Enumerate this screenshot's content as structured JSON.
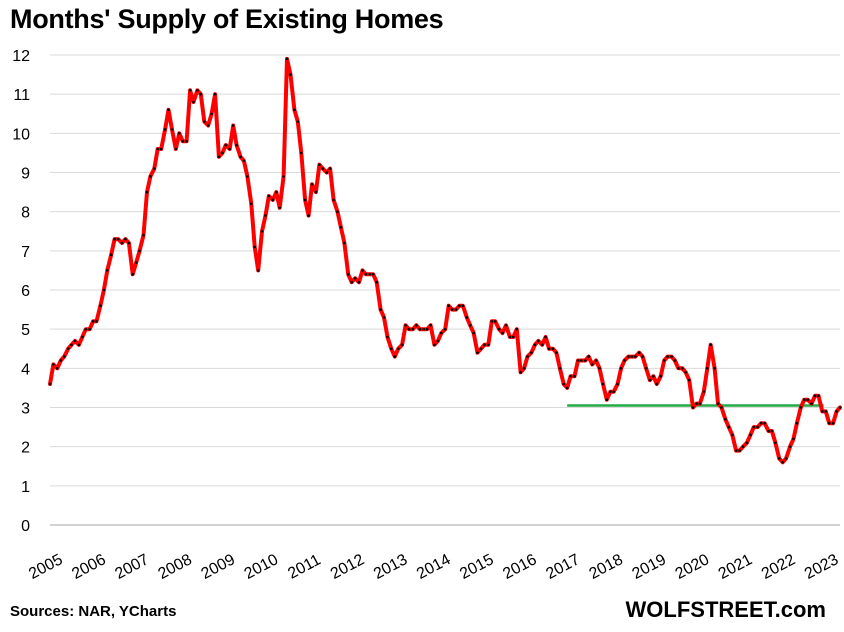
{
  "title": "Months' Supply of Existing Homes",
  "source": "Sources: NAR, YCharts",
  "brand": "WOLFSTREET.com",
  "chart_data": {
    "type": "line",
    "title": "Months' Supply of Existing Homes",
    "xlabel": "",
    "ylabel": "",
    "ylim": [
      0,
      12
    ],
    "yticks": [
      "0",
      "1",
      "2",
      "3",
      "4",
      "5",
      "6",
      "7",
      "8",
      "9",
      "10",
      "11",
      "12"
    ],
    "xticks": [
      "2005",
      "2006",
      "2007",
      "2008",
      "2009",
      "2010",
      "2011",
      "2012",
      "2013",
      "2014",
      "2015",
      "2016",
      "2017",
      "2018",
      "2019",
      "2020",
      "2021",
      "2022",
      "2023"
    ],
    "grid": true,
    "colors": {
      "series": "#ff0000",
      "marker": "#000000",
      "reference": "#22aa44",
      "grid": "#d9d9d9"
    },
    "series": [
      {
        "points": [
          [
            2005.0,
            3.6
          ],
          [
            2005.08,
            4.1
          ],
          [
            2005.17,
            4.0
          ],
          [
            2005.25,
            4.2
          ],
          [
            2005.33,
            4.3
          ],
          [
            2005.42,
            4.5
          ],
          [
            2005.5,
            4.6
          ],
          [
            2005.58,
            4.7
          ],
          [
            2005.67,
            4.6
          ],
          [
            2005.75,
            4.8
          ],
          [
            2005.83,
            5.0
          ],
          [
            2005.92,
            5.0
          ],
          [
            2006.0,
            5.2
          ],
          [
            2006.08,
            5.2
          ],
          [
            2006.17,
            5.6
          ],
          [
            2006.25,
            6.0
          ],
          [
            2006.33,
            6.5
          ],
          [
            2006.42,
            6.9
          ],
          [
            2006.5,
            7.3
          ],
          [
            2006.58,
            7.3
          ],
          [
            2006.67,
            7.2
          ],
          [
            2006.75,
            7.3
          ],
          [
            2006.83,
            7.2
          ],
          [
            2006.92,
            6.4
          ],
          [
            2007.0,
            6.7
          ],
          [
            2007.08,
            7.0
          ],
          [
            2007.17,
            7.4
          ],
          [
            2007.25,
            8.5
          ],
          [
            2007.33,
            8.9
          ],
          [
            2007.42,
            9.1
          ],
          [
            2007.5,
            9.6
          ],
          [
            2007.58,
            9.6
          ],
          [
            2007.67,
            10.1
          ],
          [
            2007.75,
            10.6
          ],
          [
            2007.83,
            10.1
          ],
          [
            2007.92,
            9.6
          ],
          [
            2008.0,
            10.0
          ],
          [
            2008.08,
            9.8
          ],
          [
            2008.17,
            9.8
          ],
          [
            2008.25,
            11.1
          ],
          [
            2008.33,
            10.8
          ],
          [
            2008.42,
            11.1
          ],
          [
            2008.5,
            11.0
          ],
          [
            2008.58,
            10.3
          ],
          [
            2008.67,
            10.2
          ],
          [
            2008.75,
            10.5
          ],
          [
            2008.83,
            11.0
          ],
          [
            2008.92,
            9.4
          ],
          [
            2009.0,
            9.5
          ],
          [
            2009.08,
            9.7
          ],
          [
            2009.17,
            9.6
          ],
          [
            2009.25,
            10.2
          ],
          [
            2009.33,
            9.7
          ],
          [
            2009.42,
            9.4
          ],
          [
            2009.5,
            9.3
          ],
          [
            2009.58,
            8.9
          ],
          [
            2009.67,
            8.2
          ],
          [
            2009.75,
            7.1
          ],
          [
            2009.83,
            6.5
          ],
          [
            2009.92,
            7.5
          ],
          [
            2010.0,
            7.9
          ],
          [
            2010.08,
            8.4
          ],
          [
            2010.17,
            8.3
          ],
          [
            2010.25,
            8.5
          ],
          [
            2010.33,
            8.1
          ],
          [
            2010.42,
            8.9
          ],
          [
            2010.5,
            11.9
          ],
          [
            2010.58,
            11.5
          ],
          [
            2010.67,
            10.6
          ],
          [
            2010.75,
            10.3
          ],
          [
            2010.83,
            9.5
          ],
          [
            2010.92,
            8.3
          ],
          [
            2011.0,
            7.9
          ],
          [
            2011.08,
            8.7
          ],
          [
            2011.17,
            8.5
          ],
          [
            2011.25,
            9.2
          ],
          [
            2011.33,
            9.1
          ],
          [
            2011.42,
            9.0
          ],
          [
            2011.5,
            9.1
          ],
          [
            2011.58,
            8.3
          ],
          [
            2011.67,
            8.0
          ],
          [
            2011.75,
            7.6
          ],
          [
            2011.83,
            7.2
          ],
          [
            2011.92,
            6.4
          ],
          [
            2012.0,
            6.2
          ],
          [
            2012.08,
            6.3
          ],
          [
            2012.17,
            6.2
          ],
          [
            2012.25,
            6.5
          ],
          [
            2012.33,
            6.4
          ],
          [
            2012.42,
            6.4
          ],
          [
            2012.5,
            6.4
          ],
          [
            2012.58,
            6.2
          ],
          [
            2012.67,
            5.5
          ],
          [
            2012.75,
            5.3
          ],
          [
            2012.83,
            4.8
          ],
          [
            2012.92,
            4.5
          ],
          [
            2013.0,
            4.3
          ],
          [
            2013.08,
            4.5
          ],
          [
            2013.17,
            4.6
          ],
          [
            2013.25,
            5.1
          ],
          [
            2013.33,
            5.0
          ],
          [
            2013.42,
            5.0
          ],
          [
            2013.5,
            5.1
          ],
          [
            2013.58,
            5.0
          ],
          [
            2013.67,
            5.0
          ],
          [
            2013.75,
            5.0
          ],
          [
            2013.83,
            5.1
          ],
          [
            2013.92,
            4.6
          ],
          [
            2014.0,
            4.7
          ],
          [
            2014.08,
            4.9
          ],
          [
            2014.17,
            5.0
          ],
          [
            2014.25,
            5.6
          ],
          [
            2014.33,
            5.5
          ],
          [
            2014.42,
            5.5
          ],
          [
            2014.5,
            5.6
          ],
          [
            2014.58,
            5.6
          ],
          [
            2014.67,
            5.3
          ],
          [
            2014.75,
            5.1
          ],
          [
            2014.83,
            4.9
          ],
          [
            2014.92,
            4.4
          ],
          [
            2015.0,
            4.5
          ],
          [
            2015.08,
            4.6
          ],
          [
            2015.17,
            4.6
          ],
          [
            2015.25,
            5.2
          ],
          [
            2015.33,
            5.2
          ],
          [
            2015.42,
            5.0
          ],
          [
            2015.5,
            4.9
          ],
          [
            2015.58,
            5.1
          ],
          [
            2015.67,
            4.8
          ],
          [
            2015.75,
            4.8
          ],
          [
            2015.83,
            5.0
          ],
          [
            2015.92,
            3.9
          ],
          [
            2016.0,
            4.0
          ],
          [
            2016.08,
            4.3
          ],
          [
            2016.17,
            4.4
          ],
          [
            2016.25,
            4.6
          ],
          [
            2016.33,
            4.7
          ],
          [
            2016.42,
            4.6
          ],
          [
            2016.5,
            4.8
          ],
          [
            2016.58,
            4.5
          ],
          [
            2016.67,
            4.5
          ],
          [
            2016.75,
            4.4
          ],
          [
            2016.83,
            4.0
          ],
          [
            2016.92,
            3.6
          ],
          [
            2017.0,
            3.5
          ],
          [
            2017.08,
            3.8
          ],
          [
            2017.17,
            3.8
          ],
          [
            2017.25,
            4.2
          ],
          [
            2017.33,
            4.2
          ],
          [
            2017.42,
            4.2
          ],
          [
            2017.5,
            4.3
          ],
          [
            2017.58,
            4.1
          ],
          [
            2017.67,
            4.2
          ],
          [
            2017.75,
            4.0
          ],
          [
            2017.83,
            3.6
          ],
          [
            2017.92,
            3.2
          ],
          [
            2018.0,
            3.4
          ],
          [
            2018.08,
            3.4
          ],
          [
            2018.17,
            3.6
          ],
          [
            2018.25,
            4.0
          ],
          [
            2018.33,
            4.2
          ],
          [
            2018.42,
            4.3
          ],
          [
            2018.5,
            4.3
          ],
          [
            2018.58,
            4.3
          ],
          [
            2018.67,
            4.4
          ],
          [
            2018.75,
            4.3
          ],
          [
            2018.83,
            4.0
          ],
          [
            2018.92,
            3.7
          ],
          [
            2019.0,
            3.8
          ],
          [
            2019.08,
            3.6
          ],
          [
            2019.17,
            3.8
          ],
          [
            2019.25,
            4.2
          ],
          [
            2019.33,
            4.3
          ],
          [
            2019.42,
            4.3
          ],
          [
            2019.5,
            4.2
          ],
          [
            2019.58,
            4.0
          ],
          [
            2019.67,
            4.0
          ],
          [
            2019.75,
            3.9
          ],
          [
            2019.83,
            3.7
          ],
          [
            2019.92,
            3.0
          ],
          [
            2020.0,
            3.1
          ],
          [
            2020.08,
            3.1
          ],
          [
            2020.17,
            3.4
          ],
          [
            2020.25,
            4.0
          ],
          [
            2020.33,
            4.6
          ],
          [
            2020.42,
            4.0
          ],
          [
            2020.5,
            3.1
          ],
          [
            2020.58,
            3.0
          ],
          [
            2020.67,
            2.7
          ],
          [
            2020.75,
            2.5
          ],
          [
            2020.83,
            2.3
          ],
          [
            2020.92,
            1.9
          ],
          [
            2021.0,
            1.9
          ],
          [
            2021.08,
            2.0
          ],
          [
            2021.17,
            2.1
          ],
          [
            2021.25,
            2.3
          ],
          [
            2021.33,
            2.5
          ],
          [
            2021.42,
            2.5
          ],
          [
            2021.5,
            2.6
          ],
          [
            2021.58,
            2.6
          ],
          [
            2021.67,
            2.4
          ],
          [
            2021.75,
            2.4
          ],
          [
            2021.83,
            2.1
          ],
          [
            2021.92,
            1.7
          ],
          [
            2022.0,
            1.6
          ],
          [
            2022.08,
            1.7
          ],
          [
            2022.17,
            2.0
          ],
          [
            2022.25,
            2.2
          ],
          [
            2022.33,
            2.6
          ],
          [
            2022.42,
            3.0
          ],
          [
            2022.5,
            3.2
          ],
          [
            2022.58,
            3.2
          ],
          [
            2022.67,
            3.1
          ],
          [
            2022.75,
            3.3
          ],
          [
            2022.83,
            3.3
          ],
          [
            2022.92,
            2.9
          ],
          [
            2023.0,
            2.9
          ],
          [
            2023.08,
            2.6
          ],
          [
            2023.17,
            2.6
          ],
          [
            2023.25,
            2.9
          ],
          [
            2023.33,
            3.0
          ]
        ]
      }
    ],
    "reference_line": {
      "y": 3.05,
      "x_start": 2017.0,
      "x_end": 2022.95
    }
  }
}
